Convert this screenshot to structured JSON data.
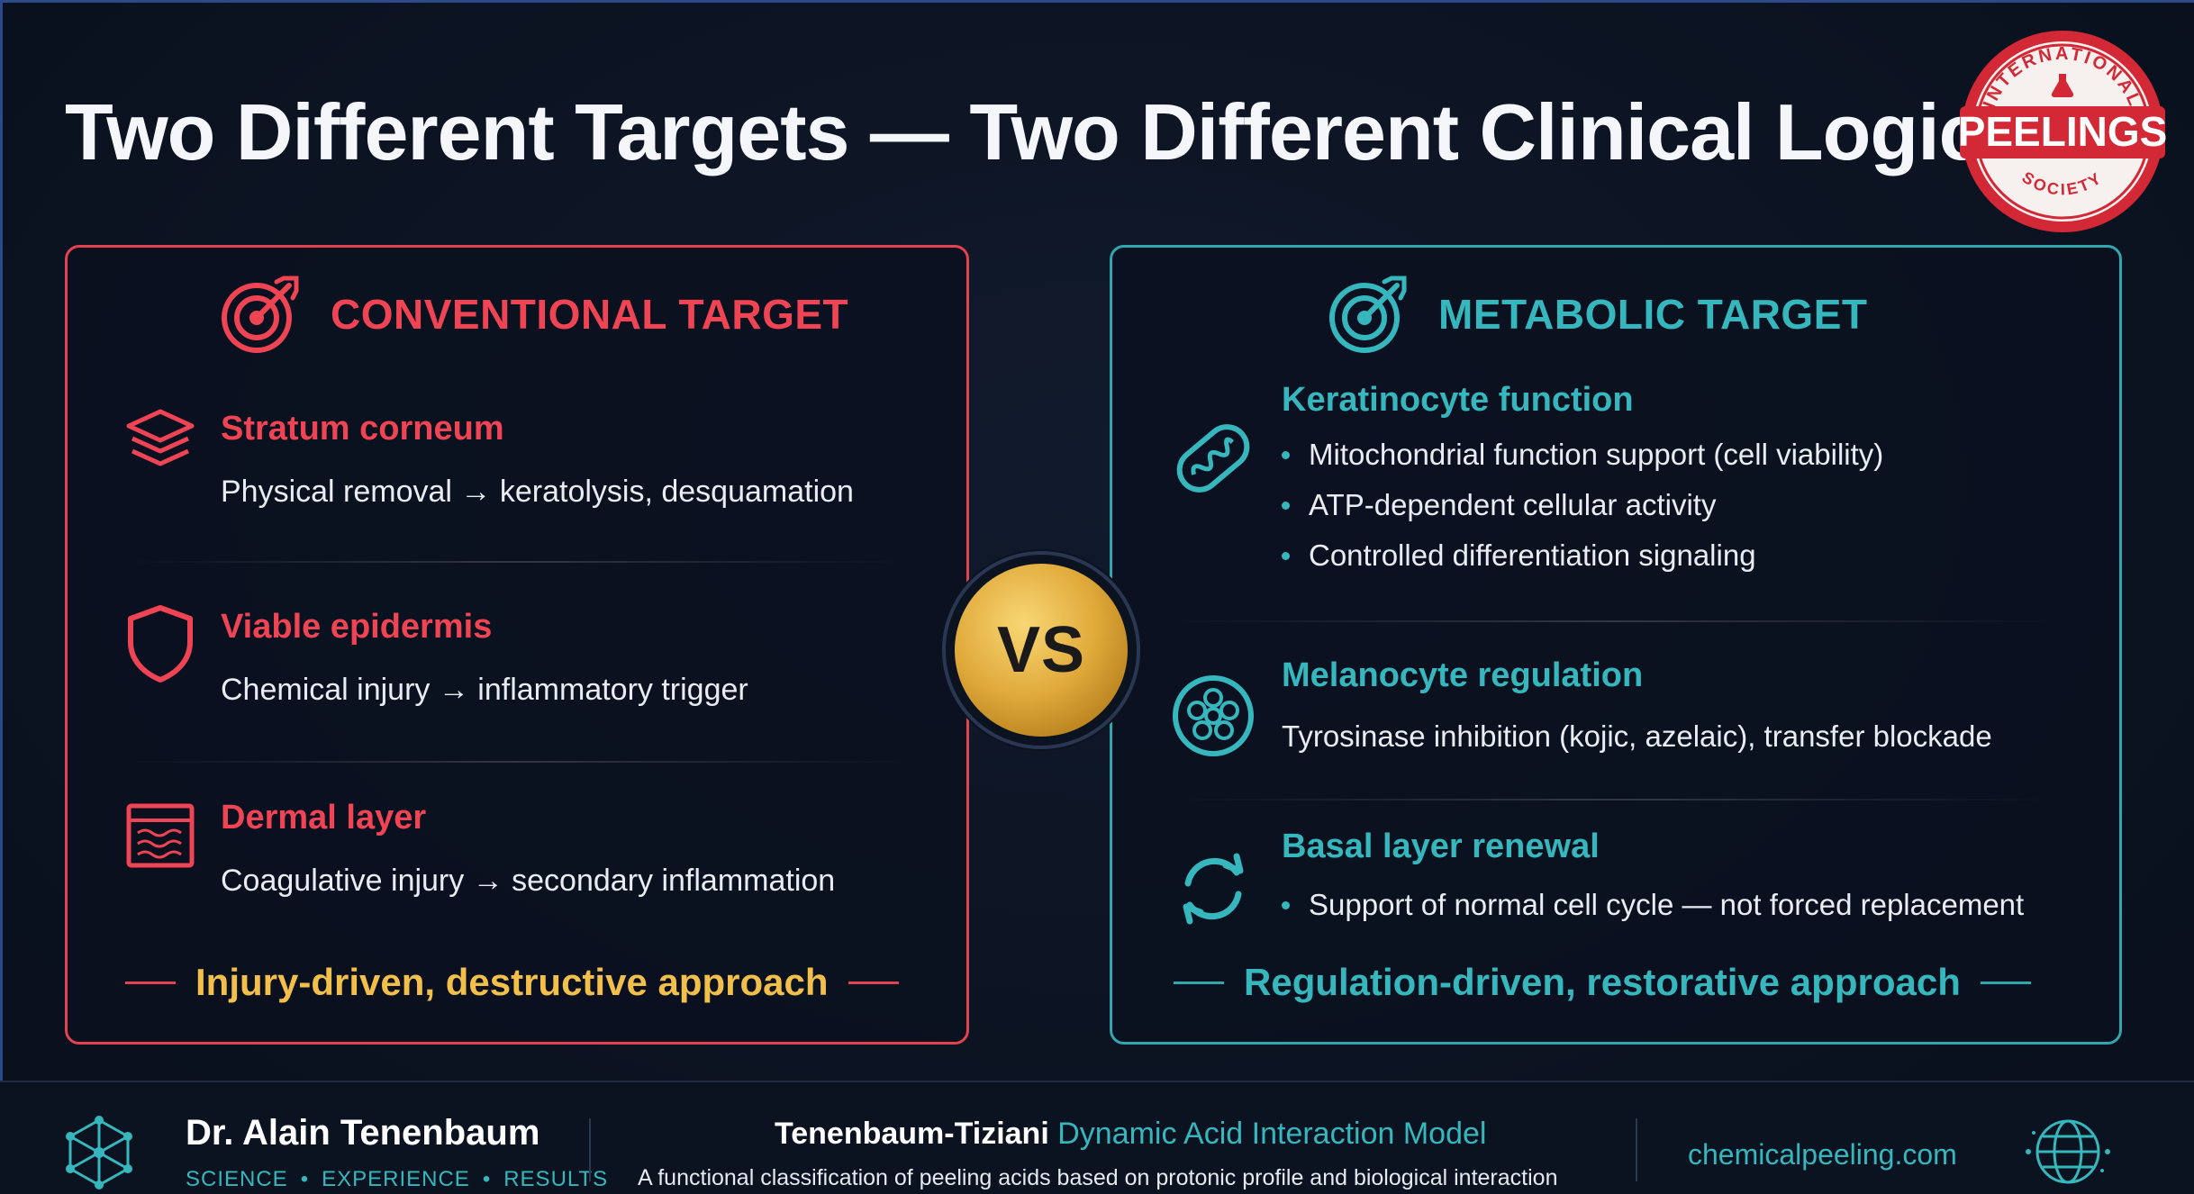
{
  "title": "Two Different Targets — Two Different Clinical Logics",
  "seal": {
    "top_text": "INTERNATIONAL",
    "center_text": "PEELINGS",
    "bottom_text": "SOCIETY"
  },
  "left_panel": {
    "heading": "CONVENTIONAL TARGET",
    "items": [
      {
        "icon": "layers-icon",
        "title": "Stratum corneum",
        "desc": "Physical removal → keratolysis, desquamation"
      },
      {
        "icon": "shield-icon",
        "title": "Viable epidermis",
        "desc": "Chemical injury → inflammatory trigger"
      },
      {
        "icon": "dermal-layer-icon",
        "title": "Dermal layer",
        "desc": "Coagulative injury → secondary inflammation"
      }
    ],
    "footer": "Injury-driven, destructive approach"
  },
  "vs_label": "VS",
  "right_panel": {
    "heading": "METABOLIC TARGET",
    "keratinocyte": {
      "icon": "mitochondria-icon",
      "title": "Keratinocyte function",
      "bullets": [
        "Mitochondrial function support (cell viability)",
        "ATP-dependent cellular activity",
        "Controlled differentiation signaling"
      ]
    },
    "melanocyte": {
      "icon": "melanocyte-cell-icon",
      "title": "Melanocyte regulation",
      "desc": "Tyrosinase inhibition (kojic, azelaic), transfer blockade"
    },
    "basal": {
      "icon": "renewal-cycle-icon",
      "title": "Basal layer renewal",
      "bullets": [
        "Support of normal cell cycle — not forced replacement"
      ]
    },
    "footer": "Regulation-driven, restorative approach"
  },
  "footer": {
    "author": "Dr. Alain Tenenbaum",
    "tagline": [
      "SCIENCE",
      "EXPERIENCE",
      "RESULTS"
    ],
    "tagline_sep": "•",
    "model_title_main": "Tenenbaum-Tiziani",
    "model_title_accent": "Dynamic Acid Interaction Model",
    "model_desc": "A functional classification of peeling acids based on protonic profile and biological interaction",
    "website": "chemicalpeeling.com"
  },
  "colors": {
    "red": "#ee4454",
    "teal": "#35b7bd",
    "gold": "#f2c04a",
    "background": "#0b1220"
  }
}
